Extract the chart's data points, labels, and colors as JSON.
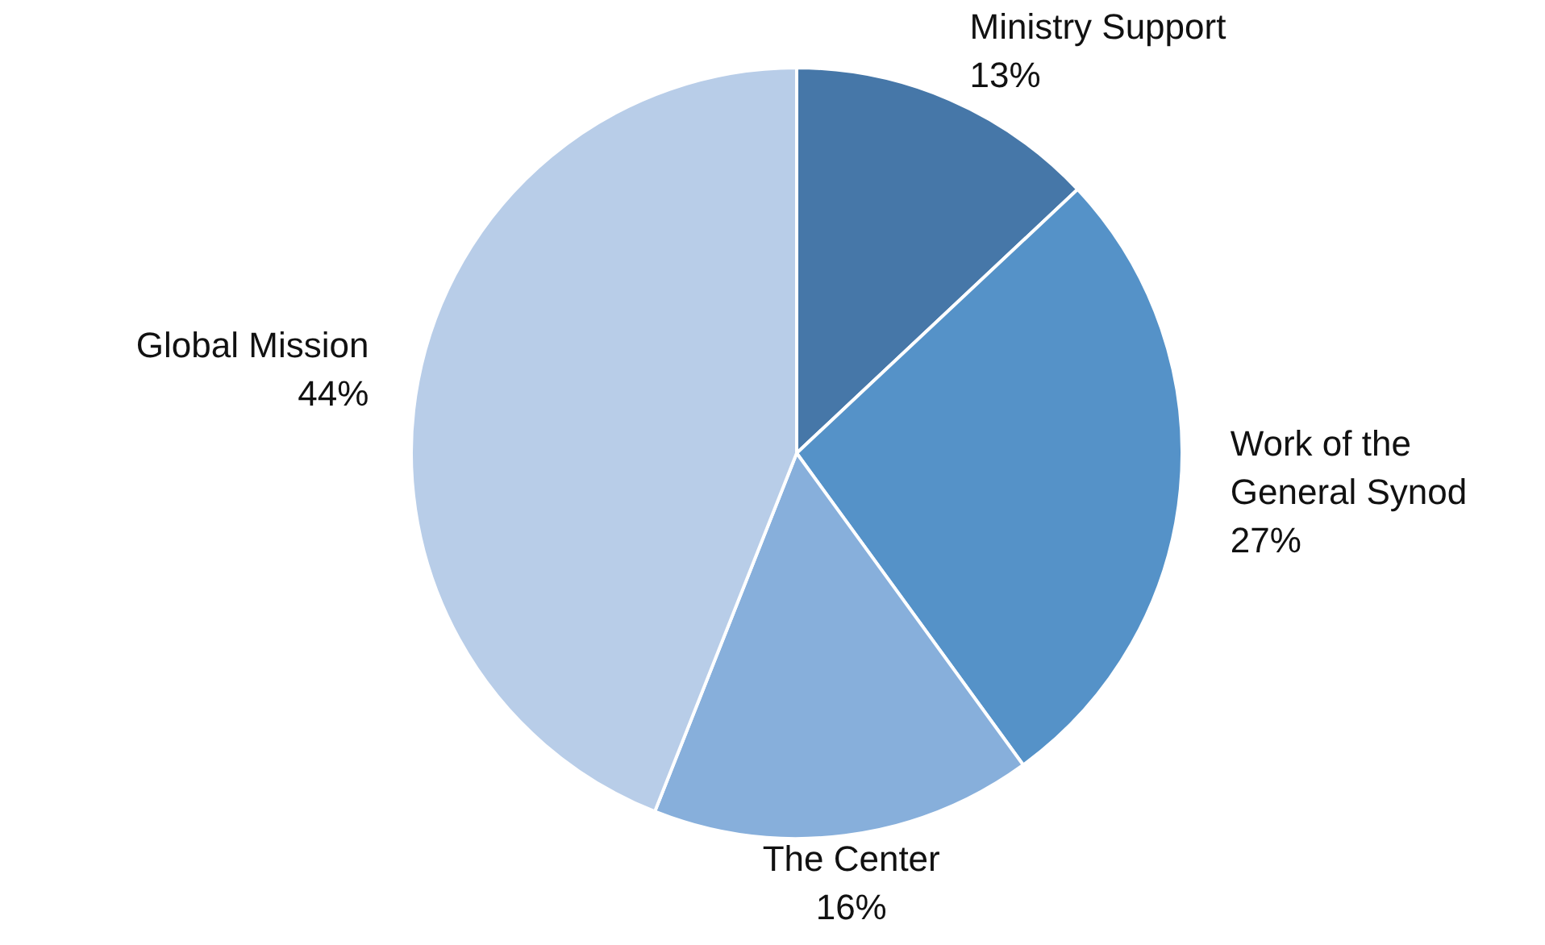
{
  "chart_data": {
    "type": "pie",
    "categories": [
      "Ministry Support",
      "Work of the General Synod",
      "The Center",
      "Global Mission"
    ],
    "values": [
      13,
      27,
      16,
      44
    ],
    "colors": [
      "#4677a8",
      "#5592c8",
      "#87afdb",
      "#b8cde8"
    ],
    "value_labels": [
      "13%",
      "27%",
      "16%",
      "44%"
    ],
    "legend": false
  }
}
